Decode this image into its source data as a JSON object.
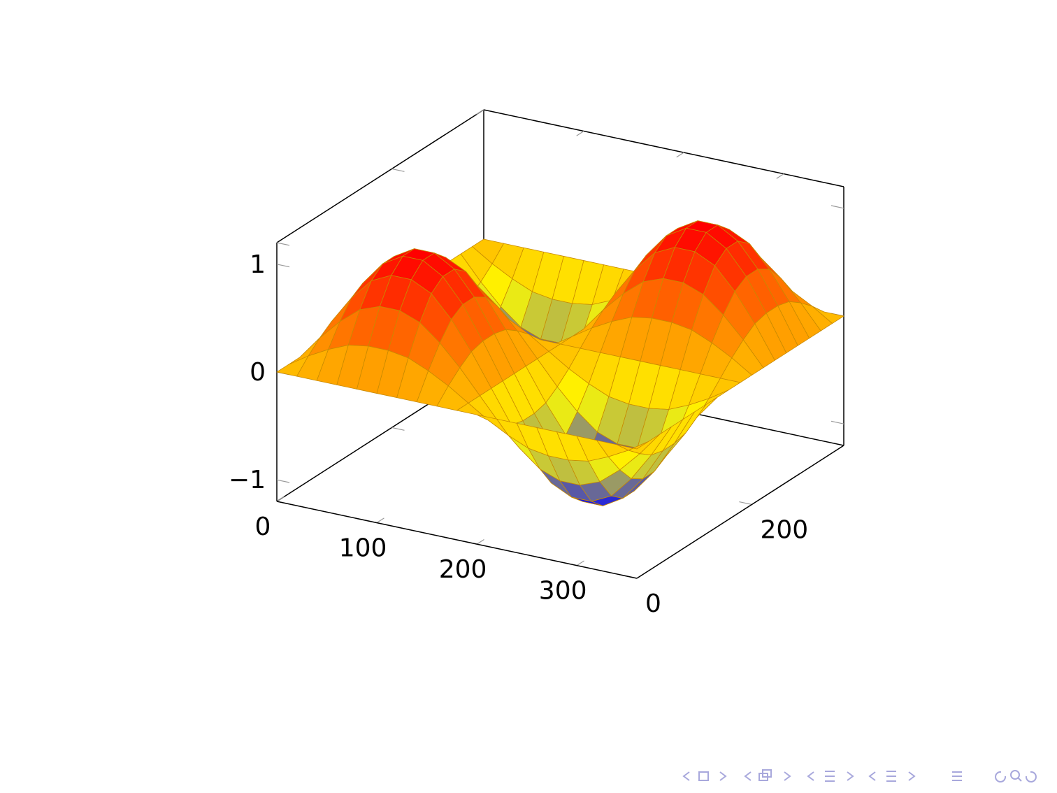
{
  "chart_data": {
    "type": "surface",
    "x": [
      0,
      20,
      40,
      60,
      80,
      100,
      120,
      140,
      160,
      180,
      200,
      220,
      240,
      260,
      280,
      300,
      320,
      340,
      360
    ],
    "y": [
      0,
      20,
      40,
      60,
      80,
      100,
      120,
      140,
      160,
      180,
      200,
      220,
      240,
      260,
      280,
      300,
      320,
      340,
      360
    ],
    "z": [
      [
        0,
        0,
        0,
        0,
        0,
        0,
        0,
        0,
        0,
        0,
        0,
        0,
        0,
        0,
        0,
        0,
        0,
        0,
        0
      ],
      [
        0,
        0.12,
        0.22,
        0.3,
        0.33,
        0.33,
        0.3,
        0.22,
        0.12,
        0,
        -0.12,
        -0.22,
        -0.3,
        -0.33,
        -0.33,
        -0.3,
        -0.22,
        -0.12,
        0
      ],
      [
        0,
        0.22,
        0.41,
        0.56,
        0.63,
        0.63,
        0.56,
        0.41,
        0.22,
        0,
        -0.22,
        -0.41,
        -0.56,
        -0.63,
        -0.63,
        -0.56,
        -0.41,
        -0.22,
        0
      ],
      [
        0,
        0.3,
        0.56,
        0.76,
        0.85,
        0.85,
        0.76,
        0.56,
        0.3,
        0,
        -0.3,
        -0.56,
        -0.76,
        -0.85,
        -0.85,
        -0.76,
        -0.56,
        -0.3,
        0
      ],
      [
        0,
        0.33,
        0.63,
        0.85,
        0.96,
        0.96,
        0.85,
        0.63,
        0.33,
        0,
        -0.33,
        -0.63,
        -0.85,
        -0.96,
        -0.96,
        -0.85,
        -0.63,
        -0.33,
        0
      ],
      [
        0,
        0.33,
        0.63,
        0.85,
        0.96,
        0.96,
        0.85,
        0.63,
        0.33,
        0,
        -0.33,
        -0.63,
        -0.85,
        -0.96,
        -0.96,
        -0.85,
        -0.63,
        -0.33,
        0
      ],
      [
        0,
        0.3,
        0.56,
        0.76,
        0.85,
        0.85,
        0.76,
        0.56,
        0.3,
        0,
        -0.3,
        -0.56,
        -0.76,
        -0.85,
        -0.85,
        -0.76,
        -0.56,
        -0.3,
        0
      ],
      [
        0,
        0.22,
        0.41,
        0.56,
        0.63,
        0.63,
        0.56,
        0.41,
        0.22,
        0,
        -0.22,
        -0.41,
        -0.56,
        -0.63,
        -0.63,
        -0.56,
        -0.41,
        -0.22,
        0
      ],
      [
        0,
        0.12,
        0.22,
        0.3,
        0.33,
        0.33,
        0.3,
        0.22,
        0.12,
        0,
        -0.12,
        -0.22,
        -0.3,
        -0.33,
        -0.33,
        -0.3,
        -0.22,
        -0.12,
        0
      ],
      [
        0,
        0,
        0,
        0,
        0,
        0,
        0,
        0,
        0,
        0,
        0,
        0,
        0,
        0,
        0,
        0,
        0,
        0,
        0
      ],
      [
        0,
        -0.12,
        -0.22,
        -0.3,
        -0.33,
        -0.33,
        -0.3,
        -0.22,
        -0.12,
        0,
        0.12,
        0.22,
        0.3,
        0.33,
        0.33,
        0.3,
        0.22,
        0.12,
        0
      ],
      [
        0,
        -0.22,
        -0.41,
        -0.56,
        -0.63,
        -0.63,
        -0.56,
        -0.41,
        -0.22,
        0,
        0.22,
        0.41,
        0.56,
        0.63,
        0.63,
        0.56,
        0.41,
        0.22,
        0
      ],
      [
        0,
        -0.3,
        -0.56,
        -0.76,
        -0.85,
        -0.85,
        -0.76,
        -0.56,
        -0.3,
        0,
        0.3,
        0.56,
        0.76,
        0.85,
        0.85,
        0.76,
        0.56,
        0.3,
        0
      ],
      [
        0,
        -0.33,
        -0.63,
        -0.85,
        -0.96,
        -0.96,
        -0.85,
        -0.63,
        -0.33,
        0,
        0.33,
        0.63,
        0.85,
        0.96,
        0.96,
        0.85,
        0.63,
        0.33,
        0
      ],
      [
        0,
        -0.33,
        -0.63,
        -0.85,
        -0.96,
        -0.96,
        -0.85,
        -0.63,
        -0.33,
        0,
        0.33,
        0.63,
        0.85,
        0.96,
        0.96,
        0.85,
        0.63,
        0.33,
        0
      ],
      [
        0,
        -0.3,
        -0.56,
        -0.76,
        -0.85,
        -0.85,
        -0.76,
        -0.56,
        -0.3,
        0,
        0.3,
        0.56,
        0.76,
        0.85,
        0.85,
        0.76,
        0.56,
        0.3,
        0
      ],
      [
        0,
        -0.22,
        -0.41,
        -0.56,
        -0.63,
        -0.63,
        -0.56,
        -0.41,
        -0.22,
        0,
        0.22,
        0.41,
        0.56,
        0.63,
        0.63,
        0.56,
        0.41,
        0.22,
        0
      ],
      [
        0,
        -0.12,
        -0.22,
        -0.3,
        -0.33,
        -0.33,
        -0.3,
        -0.22,
        -0.12,
        0,
        0.12,
        0.22,
        0.3,
        0.33,
        0.33,
        0.3,
        0.22,
        0.12,
        0
      ],
      [
        0,
        0,
        0,
        0,
        0,
        0,
        0,
        0,
        0,
        0,
        0,
        0,
        0,
        0,
        0,
        0,
        0,
        0,
        0
      ]
    ],
    "colormap": [
      "#0000ff",
      "#ffff00",
      "#ff8000",
      "#ff0000"
    ],
    "mesh_color": "#c88a00",
    "xlim": [
      0,
      360
    ],
    "ylim": [
      0,
      360
    ],
    "zlim": [
      -1.2,
      1.2
    ],
    "xticks": [
      0,
      100,
      200,
      300
    ],
    "yticks": [
      0,
      200
    ],
    "zticks": [
      {
        "value": -1,
        "label": "−1"
      },
      0,
      1
    ]
  }
}
